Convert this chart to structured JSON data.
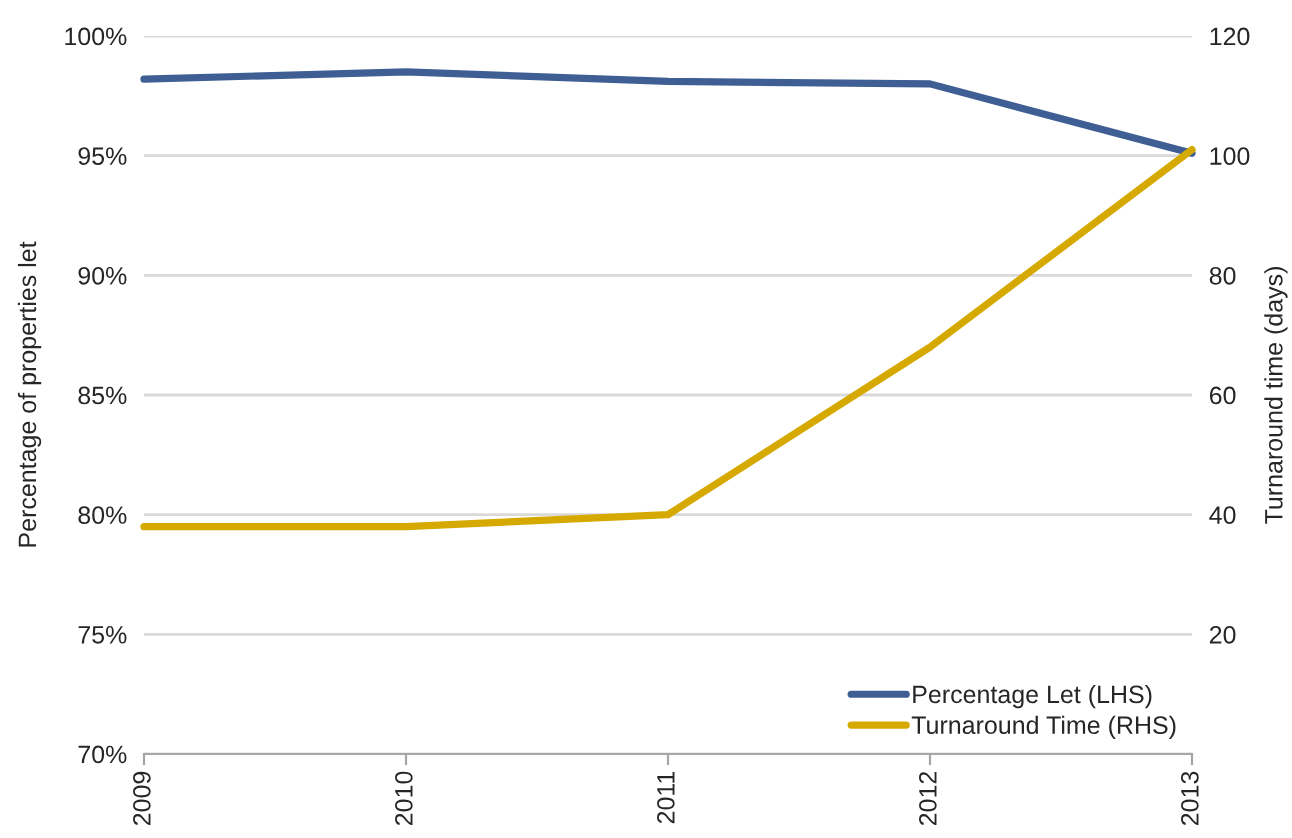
{
  "chart_data": {
    "type": "line",
    "ylabel": "Percentage of properties let",
    "y2label": "Turnaround time (days)",
    "x": [
      2009,
      2010,
      2011,
      2012,
      2013
    ],
    "xlim": [
      2009,
      2013
    ],
    "xticks": [
      2009,
      2010,
      2011,
      2012,
      2013
    ],
    "ylim": [
      70,
      100
    ],
    "yticks": [
      {
        "value": 70,
        "label": "70%"
      },
      {
        "value": 75,
        "label": "75%"
      },
      {
        "value": 80,
        "label": "80%"
      },
      {
        "value": 85,
        "label": "85%"
      },
      {
        "value": 90,
        "label": "90%"
      },
      {
        "value": 95,
        "label": "95%"
      },
      {
        "value": 100,
        "label": "100%"
      }
    ],
    "y2lim": [
      0,
      120
    ],
    "y2ticks": [
      20,
      40,
      60,
      80,
      100,
      120
    ],
    "series": [
      {
        "name": "Percentage Let (LHS)",
        "color": "#3f5f94",
        "values": [
          98.2,
          98.5,
          98.1,
          98.0,
          95.1
        ]
      },
      {
        "name": "Turnaround Time (RHS)",
        "color": "#d6a900",
        "axis": "y2",
        "values": [
          38,
          38,
          40,
          68,
          101
        ]
      }
    ],
    "grid": "y",
    "legend": "bottom right",
    "marker": "none",
    "line_style": "solid"
  }
}
